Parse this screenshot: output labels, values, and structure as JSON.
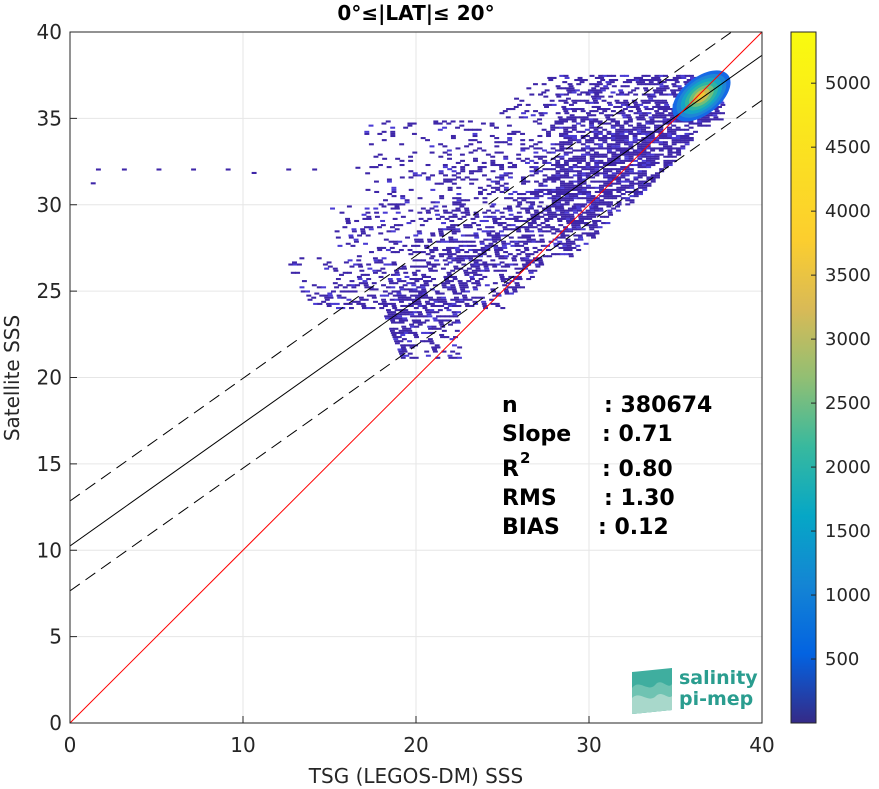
{
  "chart_data": {
    "type": "heatmap",
    "title": "0°≤|LAT|≤ 20°",
    "xlabel": "TSG (LEGOS-DM) SSS",
    "ylabel": "Satellite SSS",
    "xlim": [
      0,
      40
    ],
    "ylim": [
      0,
      40
    ],
    "xticks": [
      "0",
      "10",
      "20",
      "30",
      "40"
    ],
    "yticks": [
      "0",
      "5",
      "10",
      "15",
      "20",
      "25",
      "30",
      "35",
      "40"
    ],
    "grid": true,
    "colorbar": {
      "ticks": [
        "500",
        "1000",
        "1500",
        "2000",
        "2500",
        "3000",
        "3500",
        "4000",
        "4500",
        "5000"
      ],
      "tick_values": [
        500,
        1000,
        1500,
        2000,
        2500,
        3000,
        3500,
        4000,
        4500,
        5000
      ],
      "range": [
        0,
        5400
      ],
      "colormap": "parula"
    },
    "lines": {
      "identity": {
        "slope": 1,
        "intercept": 0,
        "color": "#ff0000"
      },
      "fit": {
        "slope": 0.71,
        "intercept": 10.25,
        "color": "#000000"
      },
      "fit_upper": {
        "slope": 0.71,
        "intercept": 12.85,
        "style": "dashed"
      },
      "fit_lower": {
        "slope": 0.71,
        "intercept": 7.65,
        "style": "dashed"
      }
    },
    "density_peak": {
      "x": 36.5,
      "y": 36.3,
      "count": 5300
    },
    "stats": [
      {
        "label": "n",
        "value": ": 380674"
      },
      {
        "label": "Slope",
        "value": ": 0.71"
      },
      {
        "label": "R",
        "sup": "2",
        "value": ": 0.80"
      },
      {
        "label": "RMS",
        "value": ": 1.30"
      },
      {
        "label": "BIAS",
        "value": ": 0.12"
      }
    ]
  },
  "logo": {
    "line1": "salinity",
    "line2": "pi-mep"
  }
}
